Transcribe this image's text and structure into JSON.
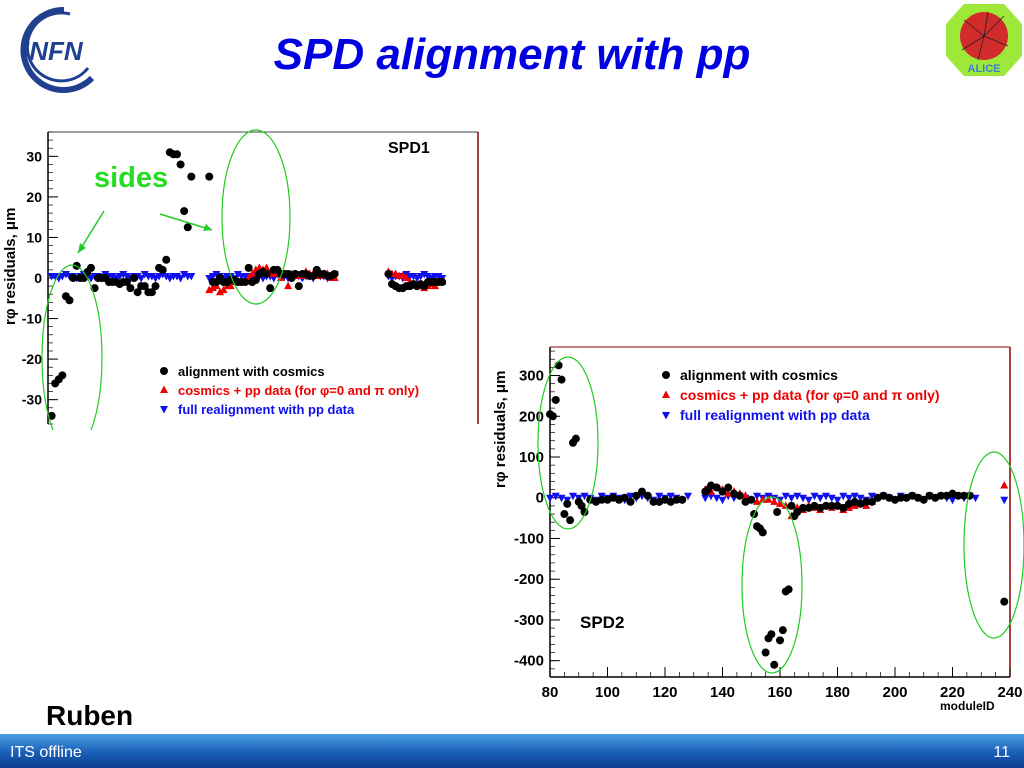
{
  "slide": {
    "title": "SPD alignment with pp",
    "logo_left_text": "INFN",
    "logo_right_text": "ALICE",
    "annotation": "sides",
    "author": "Ruben",
    "footer_left": "ITS offline",
    "page_number": "11",
    "colors": {
      "title": "#0000e0",
      "annotation": "#22dd22",
      "footer": "#1a5fb8",
      "cosmics": "#000000",
      "cosmics_pp": "#ee0000",
      "full_pp": "#1010ee"
    }
  },
  "chart_data": [
    {
      "type": "scatter",
      "label": "SPD1",
      "ylabel": "rφ residuals, μm",
      "xlabel": "",
      "ylim": [
        -36,
        36
      ],
      "xlim": [
        0,
        120
      ],
      "yticks": [
        -30,
        -20,
        -10,
        0,
        10,
        20,
        30
      ],
      "legend_position": "bottom-right",
      "legend": [
        {
          "marker": "circle",
          "label": "alignment with cosmics"
        },
        {
          "marker": "triangle-up",
          "label": "cosmics + pp data (for φ=0 and π only)"
        },
        {
          "marker": "triangle-down",
          "label": "full realignment with pp data"
        }
      ],
      "series": [
        {
          "name": "alignment with cosmics",
          "marker": "circle",
          "color": "#000000",
          "x": [
            1,
            2,
            3,
            4,
            5,
            6,
            7,
            8,
            9,
            10,
            11,
            12,
            13,
            14,
            15,
            16,
            17,
            18,
            19,
            20,
            21,
            22,
            23,
            24,
            25,
            26,
            27,
            28,
            29,
            30,
            31,
            32,
            33,
            34,
            35,
            36,
            37,
            38,
            39,
            40,
            45,
            46,
            47,
            48,
            49,
            50,
            51,
            52,
            53,
            54,
            55,
            56,
            57,
            58,
            59,
            60,
            61,
            62,
            63,
            64,
            65,
            66,
            67,
            68,
            69,
            70,
            71,
            72,
            73,
            74,
            75,
            76,
            77,
            78,
            79,
            80,
            95,
            96,
            97,
            98,
            99,
            100,
            101,
            102,
            103,
            104,
            105,
            106,
            107,
            108,
            109,
            110
          ],
          "y": [
            -34,
            -26,
            -25,
            -24,
            -4.5,
            -5.5,
            0,
            3,
            0,
            0,
            1.5,
            2.5,
            -2.5,
            0,
            0,
            0,
            -1,
            -1,
            -1,
            -1.5,
            -1,
            -1,
            -2.5,
            0,
            -3.5,
            -2,
            -2,
            -3.5,
            -3.5,
            -2,
            2.5,
            2,
            4.5,
            31,
            30.5,
            30.5,
            28,
            16.5,
            12.5,
            25,
            25,
            -1,
            -1,
            0,
            -1,
            -1,
            -0.5,
            -0.5,
            -1,
            -1,
            -1,
            2.5,
            -1,
            -0.5,
            1,
            1.5,
            1,
            -2.5,
            2,
            2,
            1,
            1,
            1,
            0,
            1,
            -2,
            1,
            1,
            0.5,
            0.5,
            2,
            1,
            1,
            0.5,
            0.5,
            1,
            1,
            -1.5,
            -2,
            -2.5,
            -2.5,
            -2,
            -2,
            -1.5,
            -2,
            -1.5,
            -2,
            -1,
            -1,
            -1,
            -1,
            -1
          ]
        },
        {
          "name": "cosmics + pp data (for φ=0 and π only)",
          "marker": "triangle-up",
          "color": "#ee0000",
          "x": [
            45,
            46,
            47,
            48,
            49,
            50,
            51,
            52,
            53,
            54,
            55,
            56,
            57,
            58,
            59,
            60,
            61,
            62,
            63,
            64,
            65,
            66,
            67,
            68,
            69,
            70,
            71,
            72,
            73,
            74,
            75,
            76,
            77,
            78,
            79,
            80,
            95,
            96,
            97,
            98,
            99,
            100,
            101,
            102,
            103,
            104,
            105,
            106,
            107,
            108,
            109,
            110
          ],
          "y": [
            -3,
            -2.5,
            -2,
            -3.5,
            -3,
            -2,
            -2,
            -1,
            -1,
            -1,
            -1,
            0,
            1,
            2,
            2.5,
            2,
            2.5,
            1,
            1,
            1,
            0,
            1,
            -2,
            1,
            1,
            0.5,
            0.5,
            1.5,
            1,
            1,
            0.5,
            0.5,
            1,
            1,
            0,
            0,
            1.5,
            1,
            1,
            0.5,
            0.5,
            0,
            -1,
            -1.5,
            -2,
            -2,
            -2.5,
            -2,
            -1.5,
            -2,
            -1,
            -1
          ]
        },
        {
          "name": "full realignment with pp data",
          "marker": "triangle-down",
          "color": "#1010ee",
          "x": [
            1,
            2,
            3,
            4,
            5,
            6,
            7,
            8,
            9,
            10,
            11,
            12,
            13,
            14,
            15,
            16,
            17,
            18,
            19,
            20,
            21,
            22,
            23,
            24,
            25,
            26,
            27,
            28,
            29,
            30,
            31,
            32,
            33,
            34,
            35,
            36,
            37,
            38,
            39,
            40,
            45,
            46,
            47,
            48,
            49,
            50,
            51,
            52,
            53,
            54,
            55,
            56,
            57,
            58,
            59,
            60,
            61,
            62,
            63,
            64,
            65,
            66,
            67,
            68,
            69,
            70,
            71,
            72,
            73,
            74,
            75,
            76,
            77,
            78,
            79,
            80,
            95,
            96,
            97,
            98,
            99,
            100,
            101,
            102,
            103,
            104,
            105,
            106,
            107,
            108,
            109,
            110
          ],
          "y": [
            0.5,
            0.5,
            0,
            0.5,
            1,
            0.5,
            0.5,
            0,
            0.5,
            1,
            0.5,
            0,
            0.5,
            0.5,
            0,
            1,
            0.5,
            0.5,
            0,
            0.5,
            1,
            0.5,
            0,
            0.5,
            0.5,
            0,
            1,
            0.5,
            0.5,
            0,
            0.5,
            1,
            0.5,
            0,
            0.5,
            0.5,
            0,
            1,
            0.5,
            0.5,
            0,
            0.5,
            1,
            0.5,
            0,
            0.5,
            0.5,
            0,
            1,
            0.5,
            0.5,
            0,
            0.5,
            1,
            0.5,
            0,
            0.5,
            0.5,
            0,
            1,
            0.5,
            0.5,
            0,
            0.5,
            1,
            0.5,
            0,
            0.5,
            0.5,
            0,
            1,
            0.5,
            0.5,
            0,
            0.5,
            1,
            0.5,
            0,
            0.5,
            0.5,
            0,
            1,
            0.5,
            0.5,
            0,
            0.5,
            1,
            0.5,
            0,
            0.5,
            0.5,
            0
          ]
        }
      ]
    },
    {
      "type": "scatter",
      "label": "SPD2",
      "ylabel": "rφ residuals, μm",
      "xlabel": "moduleID",
      "xlim": [
        80,
        240
      ],
      "ylim": [
        -440,
        370
      ],
      "xticks": [
        80,
        100,
        120,
        140,
        160,
        180,
        200,
        220,
        240
      ],
      "yticks": [
        -400,
        -300,
        -200,
        -100,
        0,
        100,
        200,
        300
      ],
      "legend_position": "top-right",
      "legend": [
        {
          "marker": "circle",
          "label": "alignment with cosmics"
        },
        {
          "marker": "triangle-up",
          "label": "cosmics + pp data (for φ=0 and π only)"
        },
        {
          "marker": "triangle-down",
          "label": "full realignment with pp data"
        }
      ],
      "series": [
        {
          "name": "alignment with cosmics",
          "marker": "circle",
          "color": "#000000",
          "x": [
            80,
            81,
            82,
            83,
            84,
            85,
            86,
            87,
            88,
            89,
            90,
            91,
            92,
            94,
            96,
            98,
            100,
            102,
            104,
            106,
            108,
            110,
            112,
            114,
            116,
            118,
            120,
            122,
            124,
            126,
            134,
            135,
            136,
            138,
            140,
            142,
            144,
            146,
            148,
            150,
            151,
            152,
            153,
            154,
            155,
            156,
            157,
            158,
            159,
            160,
            161,
            162,
            163,
            164,
            165,
            166,
            168,
            170,
            172,
            174,
            176,
            178,
            180,
            182,
            184,
            186,
            188,
            190,
            192,
            194,
            196,
            198,
            200,
            202,
            204,
            206,
            208,
            210,
            212,
            214,
            216,
            218,
            220,
            222,
            224,
            226,
            238
          ],
          "y": [
            205,
            200,
            240,
            325,
            290,
            -40,
            -15,
            -55,
            135,
            145,
            -10,
            -20,
            -35,
            -5,
            -10,
            -5,
            -5,
            0,
            -5,
            0,
            -10,
            5,
            15,
            5,
            -10,
            -10,
            -5,
            -10,
            -5,
            -5,
            15,
            20,
            30,
            25,
            15,
            25,
            10,
            5,
            -10,
            -5,
            -40,
            -70,
            -75,
            -85,
            -380,
            -345,
            -335,
            -410,
            -35,
            -350,
            -325,
            -230,
            -225,
            -20,
            -45,
            -35,
            -25,
            -25,
            -20,
            -25,
            -20,
            -20,
            -20,
            -25,
            -15,
            -10,
            -15,
            -10,
            -10,
            0,
            5,
            0,
            -5,
            0,
            0,
            5,
            0,
            -5,
            5,
            0,
            5,
            5,
            10,
            5,
            5,
            5,
            -255
          ],
          "y_note": ""
        },
        {
          "name": "cosmics + pp data (for φ=0 and π only)",
          "marker": "triangle-up",
          "color": "#ee0000",
          "x": [
            134,
            136,
            138,
            140,
            142,
            144,
            146,
            148,
            150,
            152,
            154,
            156,
            158,
            160,
            162,
            164,
            166,
            168,
            170,
            172,
            174,
            176,
            178,
            180,
            182,
            184,
            186,
            188,
            190,
            192,
            238
          ],
          "y": [
            20,
            15,
            25,
            20,
            10,
            15,
            10,
            5,
            -5,
            -10,
            -5,
            -5,
            -10,
            -15,
            -20,
            -45,
            -25,
            -30,
            -20,
            -25,
            -30,
            -20,
            -25,
            -20,
            -30,
            -25,
            -20,
            -15,
            -20,
            -10,
            30
          ]
        },
        {
          "name": "full realignment with pp data",
          "marker": "triangle-down",
          "color": "#1010ee",
          "x": [
            80,
            82,
            84,
            86,
            88,
            90,
            92,
            94,
            96,
            98,
            100,
            102,
            104,
            106,
            108,
            110,
            112,
            114,
            116,
            118,
            120,
            122,
            124,
            126,
            128,
            134,
            136,
            138,
            140,
            142,
            144,
            146,
            148,
            150,
            152,
            154,
            156,
            158,
            160,
            162,
            164,
            166,
            168,
            170,
            172,
            174,
            176,
            178,
            180,
            182,
            184,
            186,
            188,
            190,
            192,
            194,
            196,
            198,
            200,
            202,
            204,
            206,
            208,
            210,
            212,
            214,
            216,
            218,
            220,
            222,
            224,
            226,
            228,
            238
          ],
          "y": [
            0,
            5,
            0,
            -5,
            5,
            0,
            5,
            0,
            -5,
            5,
            0,
            5,
            0,
            -5,
            5,
            0,
            5,
            0,
            -5,
            5,
            0,
            5,
            0,
            -5,
            5,
            0,
            5,
            0,
            -5,
            5,
            0,
            5,
            0,
            -5,
            5,
            0,
            5,
            0,
            -5,
            5,
            0,
            5,
            0,
            -5,
            5,
            0,
            5,
            0,
            -5,
            5,
            0,
            5,
            0,
            -5,
            5,
            0,
            5,
            0,
            -5,
            5,
            0,
            5,
            0,
            -5,
            5,
            0,
            5,
            0,
            -5,
            5,
            0,
            5,
            0,
            -5
          ]
        }
      ]
    }
  ]
}
